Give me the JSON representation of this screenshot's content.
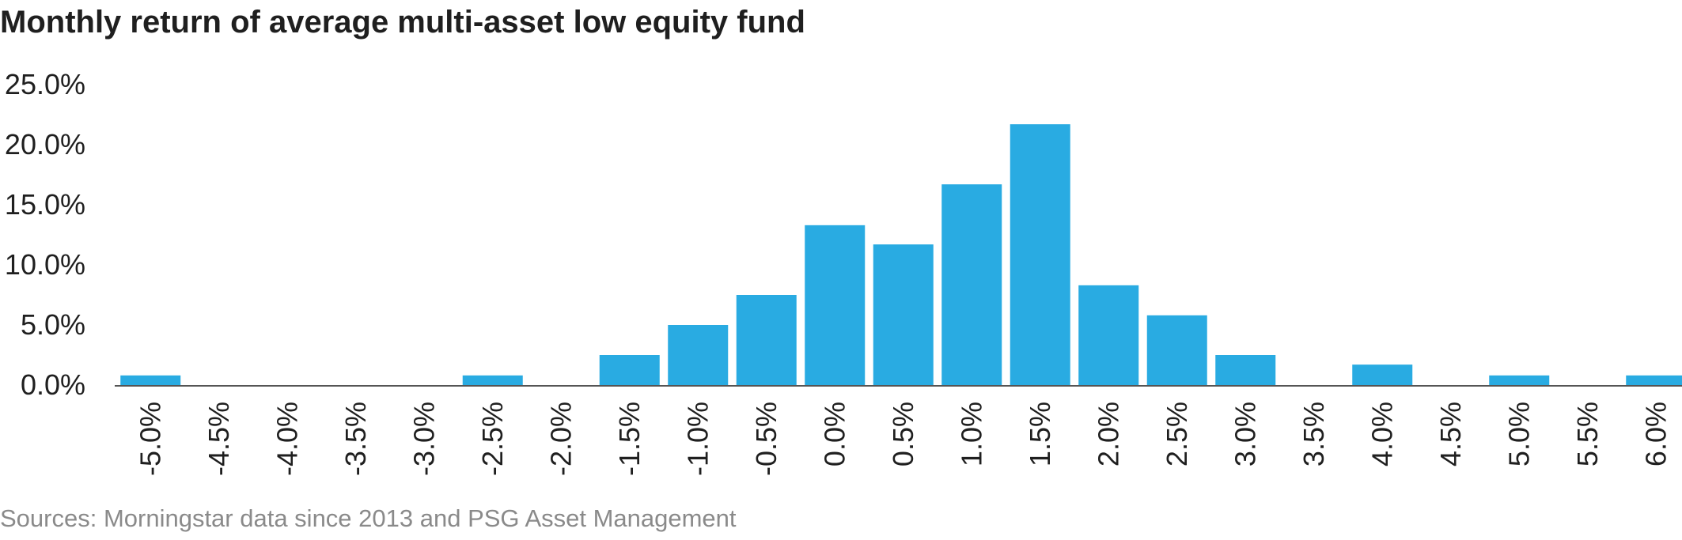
{
  "title": "Monthly return of average multi-asset low equity fund",
  "source": "Sources: Morningstar data since 2013 and PSG Asset Management",
  "chart_data": {
    "type": "bar",
    "title": "Monthly return of average multi-asset low equity fund",
    "xlabel": "",
    "ylabel": "",
    "categories": [
      "-5.0%",
      "-4.5%",
      "-4.0%",
      "-3.5%",
      "-3.0%",
      "-2.5%",
      "-2.0%",
      "-1.5%",
      "-1.0%",
      "-0.5%",
      "0.0%",
      "0.5%",
      "1.0%",
      "1.5%",
      "2.0%",
      "2.5%",
      "3.0%",
      "3.5%",
      "4.0%",
      "4.5%",
      "5.0%",
      "5.5%",
      "6.0%"
    ],
    "values": [
      0.8,
      0,
      0,
      0,
      0,
      0.8,
      0,
      2.5,
      5.0,
      7.5,
      13.3,
      11.7,
      16.7,
      21.7,
      8.3,
      5.8,
      2.5,
      0,
      1.7,
      0,
      0.8,
      0,
      0.8
    ],
    "y_ticks": [
      "0.0%",
      "5.0%",
      "10.0%",
      "15.0%",
      "20.0%",
      "25.0%"
    ],
    "ylim": [
      0,
      25
    ],
    "bar_color": "#29abe2",
    "grid": false,
    "legend": "none"
  }
}
